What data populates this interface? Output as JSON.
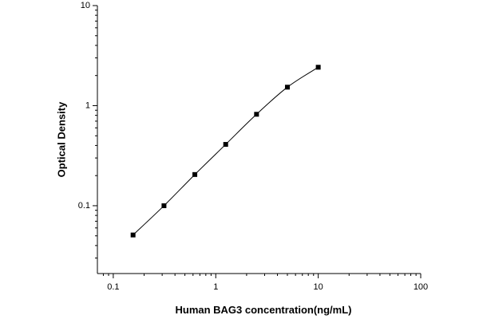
{
  "chart_data": {
    "type": "scatter",
    "xlabel": "Human BAG3 concentration(ng/mL)",
    "ylabel": "Optical Density",
    "x": [
      0.156,
      0.3125,
      0.625,
      1.25,
      2.5,
      5,
      10
    ],
    "series": [
      {
        "color": "#000000",
        "values": [
          0.051,
          0.1,
          0.205,
          0.41,
          0.82,
          1.53,
          2.42
        ]
      }
    ],
    "xscale": "log",
    "yscale": "log",
    "xlim": [
      0.07,
      100
    ],
    "ylim": [
      0.021,
      10
    ],
    "xticks": [
      0.1,
      1,
      10,
      100
    ],
    "yticks": [
      0.1,
      1,
      10
    ],
    "fit_line": true
  }
}
